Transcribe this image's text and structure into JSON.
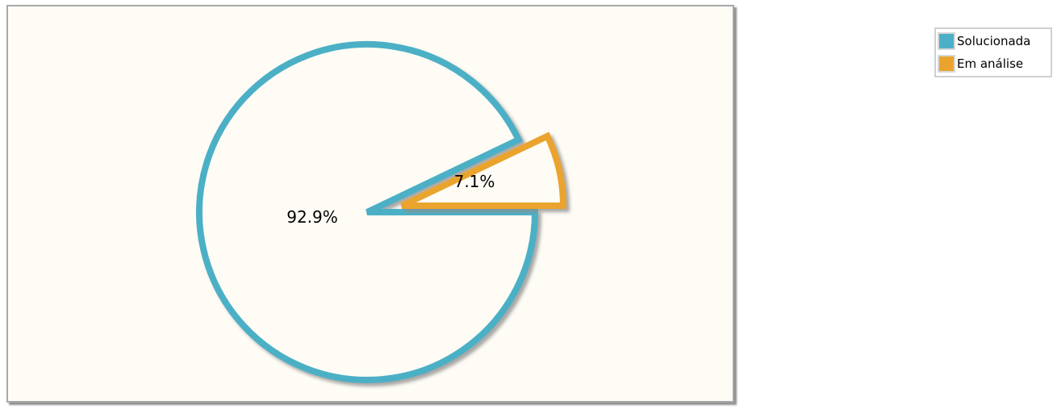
{
  "chart_data": {
    "type": "pie",
    "title": "",
    "slices": [
      {
        "name": "Solucionada",
        "value": 92.9,
        "label": "92.9%",
        "color": "#4bb0c6"
      },
      {
        "name": "Em análise",
        "value": 7.1,
        "label": "7.1%",
        "color": "#eaa42d"
      }
    ],
    "legend": {
      "position": "top-right"
    },
    "style": "donut-ring outline with exploded slice",
    "background_color": "#fefcf5"
  }
}
